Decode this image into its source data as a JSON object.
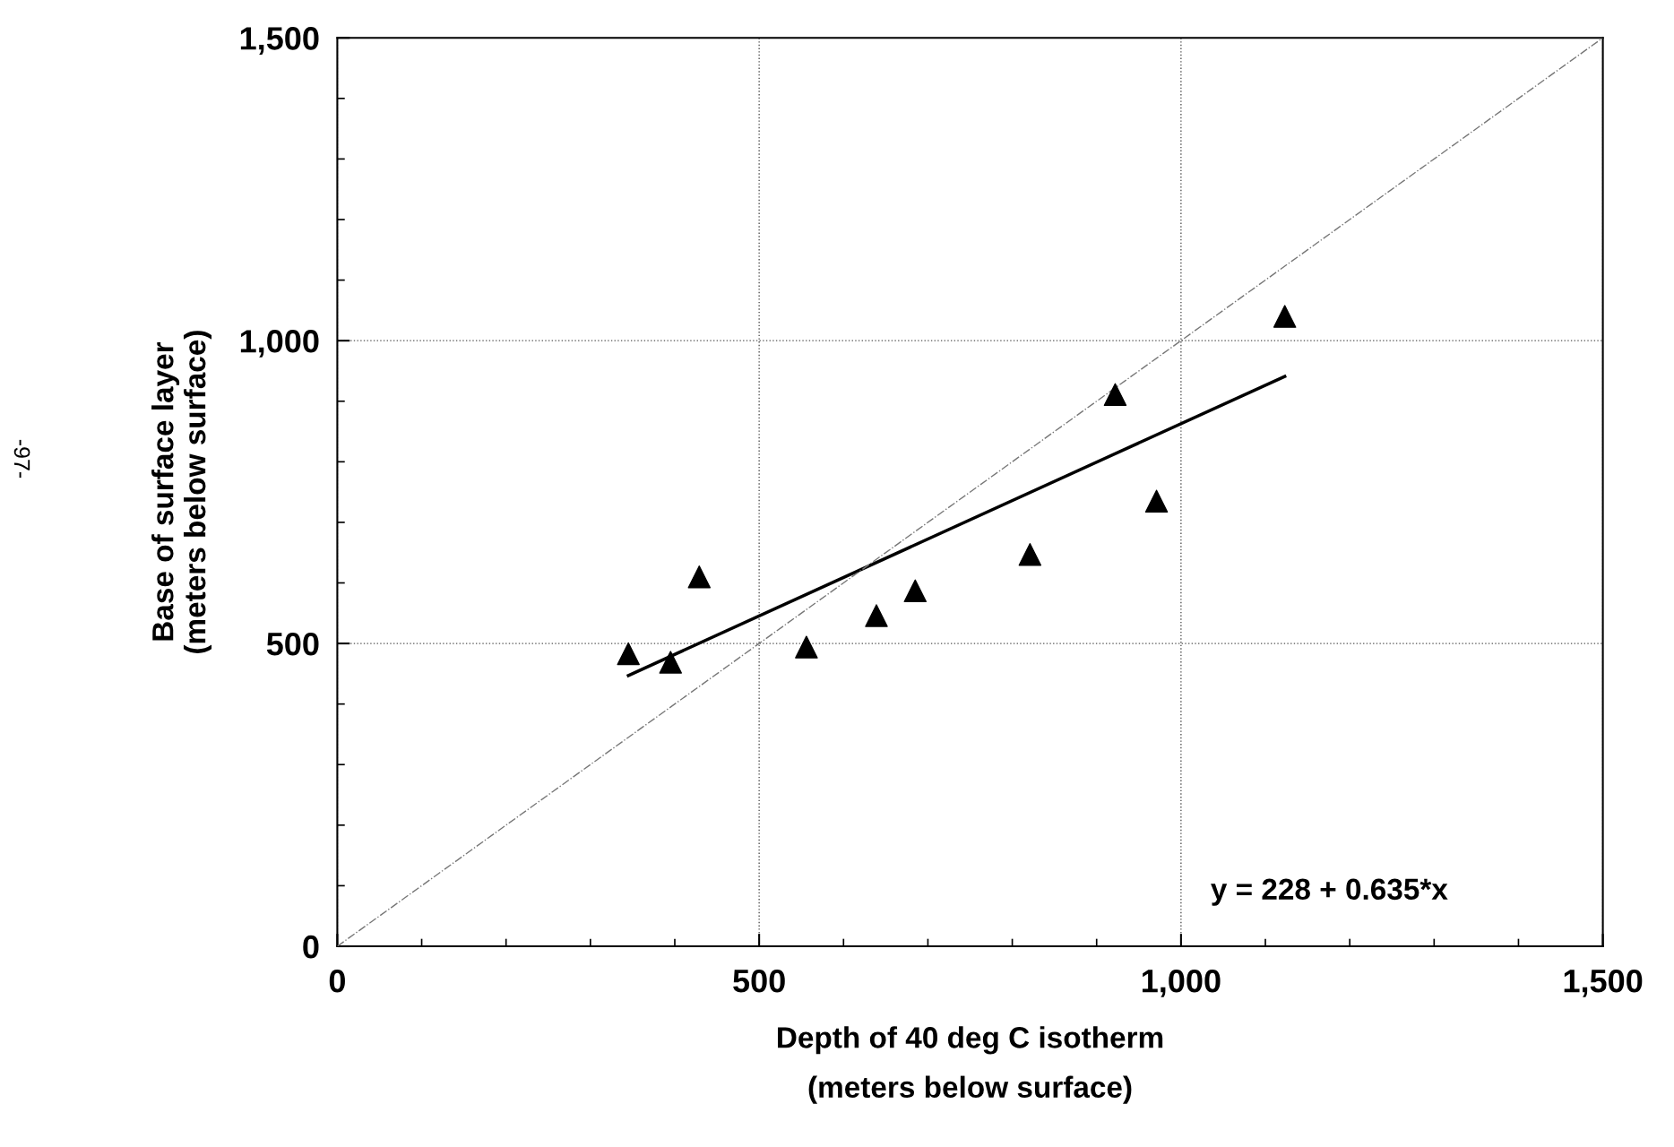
{
  "chart_data": {
    "type": "scatter",
    "xlabel": "Depth of 40 deg C isotherm\n(meters below surface)",
    "ylabel": "Base of surface layer\n(meters below surface)",
    "series": [
      {
        "color": "#000000",
        "marker": "triangle",
        "x": [
          345,
          395,
          429,
          556,
          639,
          685,
          821,
          922,
          971,
          1123
        ],
        "values": [
          483,
          469,
          610,
          494,
          546,
          587,
          647,
          911,
          735,
          1040
        ]
      },
      {
        "type": "line",
        "color": "#000000",
        "line_style": "solid",
        "x": [
          345,
          1123
        ],
        "values": [
          447,
          941
        ]
      },
      {
        "type": "line",
        "color": "#777777",
        "line_style": "dashdot",
        "x": [
          0,
          1500
        ],
        "values": [
          0,
          1500
        ]
      }
    ],
    "xlim": [
      0,
      1500
    ],
    "ylim": [
      0,
      1500
    ],
    "xticks": [
      0,
      {
        "value": 100,
        "label": null
      },
      {
        "value": 200,
        "label": null
      },
      {
        "value": 300,
        "label": null
      },
      {
        "value": 400,
        "label": null
      },
      {
        "value": 500,
        "label": "500"
      },
      {
        "value": 600,
        "label": null
      },
      {
        "value": 700,
        "label": null
      },
      {
        "value": 800,
        "label": null
      },
      {
        "value": 900,
        "label": null
      },
      {
        "value": 1000,
        "label": "1,000"
      },
      {
        "value": 1100,
        "label": null
      },
      {
        "value": 1200,
        "label": null
      },
      {
        "value": 1300,
        "label": null
      },
      {
        "value": 1400,
        "label": null
      },
      {
        "value": 1500,
        "label": "1,500"
      }
    ],
    "yticks": [
      0,
      {
        "value": 100,
        "label": null
      },
      {
        "value": 200,
        "label": null
      },
      {
        "value": 300,
        "label": null
      },
      {
        "value": 400,
        "label": null
      },
      {
        "value": 500,
        "label": "500"
      },
      {
        "value": 600,
        "label": null
      },
      {
        "value": 700,
        "label": null
      },
      {
        "value": 800,
        "label": null
      },
      {
        "value": 900,
        "label": null
      },
      {
        "value": 1000,
        "label": "1,000"
      },
      {
        "value": 1100,
        "label": null
      },
      {
        "value": 1200,
        "label": null
      },
      {
        "value": 1300,
        "label": null
      },
      {
        "value": 1400,
        "label": null
      },
      {
        "value": 1500,
        "label": "1,500"
      }
    ],
    "grid": true,
    "annotations": [
      "y = 228 + 0.635*x",
      "-97-"
    ]
  }
}
